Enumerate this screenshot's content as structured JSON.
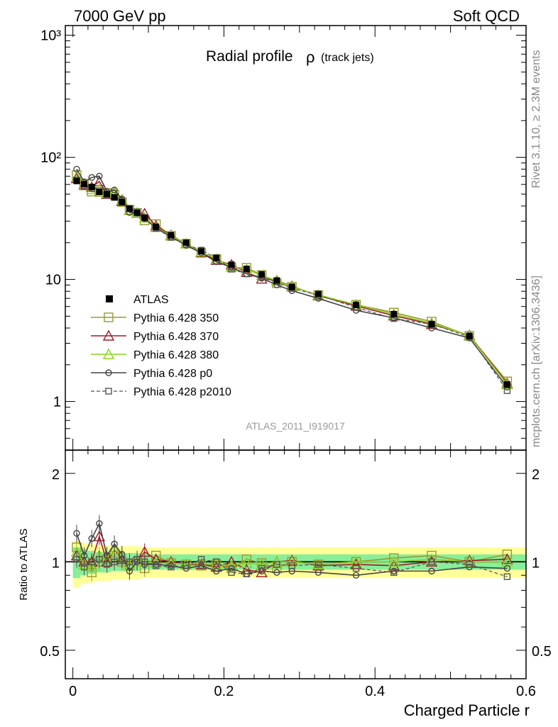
{
  "header": {
    "left": "7000 GeV pp",
    "right": "Soft QCD"
  },
  "side_labels": {
    "rivet": "Rivet 3.1.10, ≥ 2.3M events",
    "mcplots": "mcplots.cern.ch [arXiv:1306.3436]"
  },
  "chart_data": {
    "type": "line",
    "title_main": "Radial profile",
    "title_symbol": "ρ",
    "title_sub": "(track jets)",
    "watermark": "ATLAS_2011_I919017",
    "xlabel": "Charged Particle r",
    "ratio_ylabel": "Ratio to ATLAS",
    "xlim": [
      -0.01,
      0.6
    ],
    "ylim": [
      0.4,
      1200
    ],
    "yscale": "log",
    "ratio_ylim": [
      0.4,
      2.4
    ],
    "x_ticks": [
      "0",
      "0.2",
      "0.4",
      "0.6"
    ],
    "y_ticks": [
      "1",
      "10",
      "10²",
      "10³"
    ],
    "ratio_ticks": [
      "0.5",
      "1",
      "2"
    ],
    "x": [
      0.005,
      0.015,
      0.025,
      0.035,
      0.045,
      0.055,
      0.065,
      0.075,
      0.085,
      0.095,
      0.11,
      0.13,
      0.15,
      0.17,
      0.19,
      0.21,
      0.23,
      0.25,
      0.27,
      0.29,
      0.325,
      0.375,
      0.425,
      0.475,
      0.525,
      0.575
    ],
    "data": {
      "name": "ATLAS",
      "values": [
        64,
        60,
        57,
        52,
        50,
        47,
        43,
        38,
        35,
        32,
        27,
        23,
        20,
        17,
        15,
        13.2,
        12.2,
        11,
        9.8,
        8.7,
        7.6,
        6.2,
        5.2,
        4.3,
        3.45,
        1.38
      ],
      "band_inner": [
        0.12,
        0.1,
        0.09,
        0.08,
        0.08,
        0.07,
        0.07,
        0.07,
        0.07,
        0.06,
        0.06,
        0.06,
        0.06,
        0.06,
        0.06,
        0.06,
        0.06,
        0.06,
        0.06,
        0.06,
        0.06,
        0.06,
        0.06,
        0.06,
        0.06,
        0.06
      ],
      "band_outer": [
        0.18,
        0.16,
        0.15,
        0.14,
        0.14,
        0.13,
        0.13,
        0.13,
        0.13,
        0.12,
        0.12,
        0.12,
        0.12,
        0.12,
        0.12,
        0.12,
        0.12,
        0.12,
        0.12,
        0.12,
        0.12,
        0.12,
        0.12,
        0.12,
        0.12,
        0.12
      ]
    },
    "series": [
      {
        "name": "Pythia 6.428 350",
        "color": "#9a9a2e",
        "marker": "square",
        "dashed": false,
        "ratio": [
          1.12,
          1.0,
          0.92,
          1.0,
          1.02,
          1.05,
          1.0,
          0.98,
          1.0,
          0.95,
          1.05,
          0.99,
          0.98,
          0.97,
          0.98,
          0.95,
          1.02,
          0.99,
          0.95,
          1.0,
          0.98,
          1.0,
          1.03,
          1.05,
          1.0,
          1.06
        ]
      },
      {
        "name": "Pythia 6.428 370",
        "color": "#a01c2c",
        "marker": "triangle",
        "dashed": false,
        "ratio": [
          1.05,
          1.0,
          1.0,
          1.22,
          1.0,
          1.1,
          1.02,
          0.97,
          1.0,
          1.08,
          1.02,
          1.0,
          0.98,
          0.98,
          0.96,
          1.0,
          0.94,
          0.92,
          1.0,
          1.01,
          0.97,
          0.98,
          0.97,
          1.0,
          1.01,
          1.02
        ]
      },
      {
        "name": "Pythia 6.428 380",
        "color": "#8cd21e",
        "marker": "triangle",
        "dashed": false,
        "ratio": [
          1.08,
          0.98,
          0.96,
          1.05,
          1.02,
          1.1,
          1.05,
          0.97,
          1.0,
          1.0,
          0.99,
          0.99,
          0.98,
          0.99,
          0.98,
          0.97,
          0.99,
          0.98,
          1.0,
          1.0,
          0.98,
          1.0,
          1.0,
          1.02,
          1.0,
          1.0
        ]
      },
      {
        "name": "Pythia 6.428 p0",
        "color": "#444444",
        "marker": "circle",
        "dashed": false,
        "ratio": [
          1.25,
          1.05,
          1.2,
          1.35,
          1.05,
          1.15,
          1.06,
          0.93,
          1.0,
          0.98,
          0.98,
          0.97,
          0.95,
          0.97,
          0.93,
          0.95,
          0.91,
          0.93,
          0.92,
          0.93,
          0.92,
          0.9,
          0.93,
          0.93,
          0.96,
          0.95
        ]
      },
      {
        "name": "Pythia 6.428 p2010",
        "color": "#555555",
        "marker": "square",
        "dashed": true,
        "ratio": [
          1.02,
          0.96,
          1.0,
          1.02,
          0.98,
          1.0,
          1.02,
          1.0,
          1.02,
          1.0,
          0.97,
          0.96,
          0.97,
          1.02,
          1.0,
          0.92,
          0.91,
          0.95,
          0.98,
          0.97,
          0.98,
          0.95,
          0.92,
          1.0,
          0.98,
          0.89
        ]
      }
    ]
  }
}
